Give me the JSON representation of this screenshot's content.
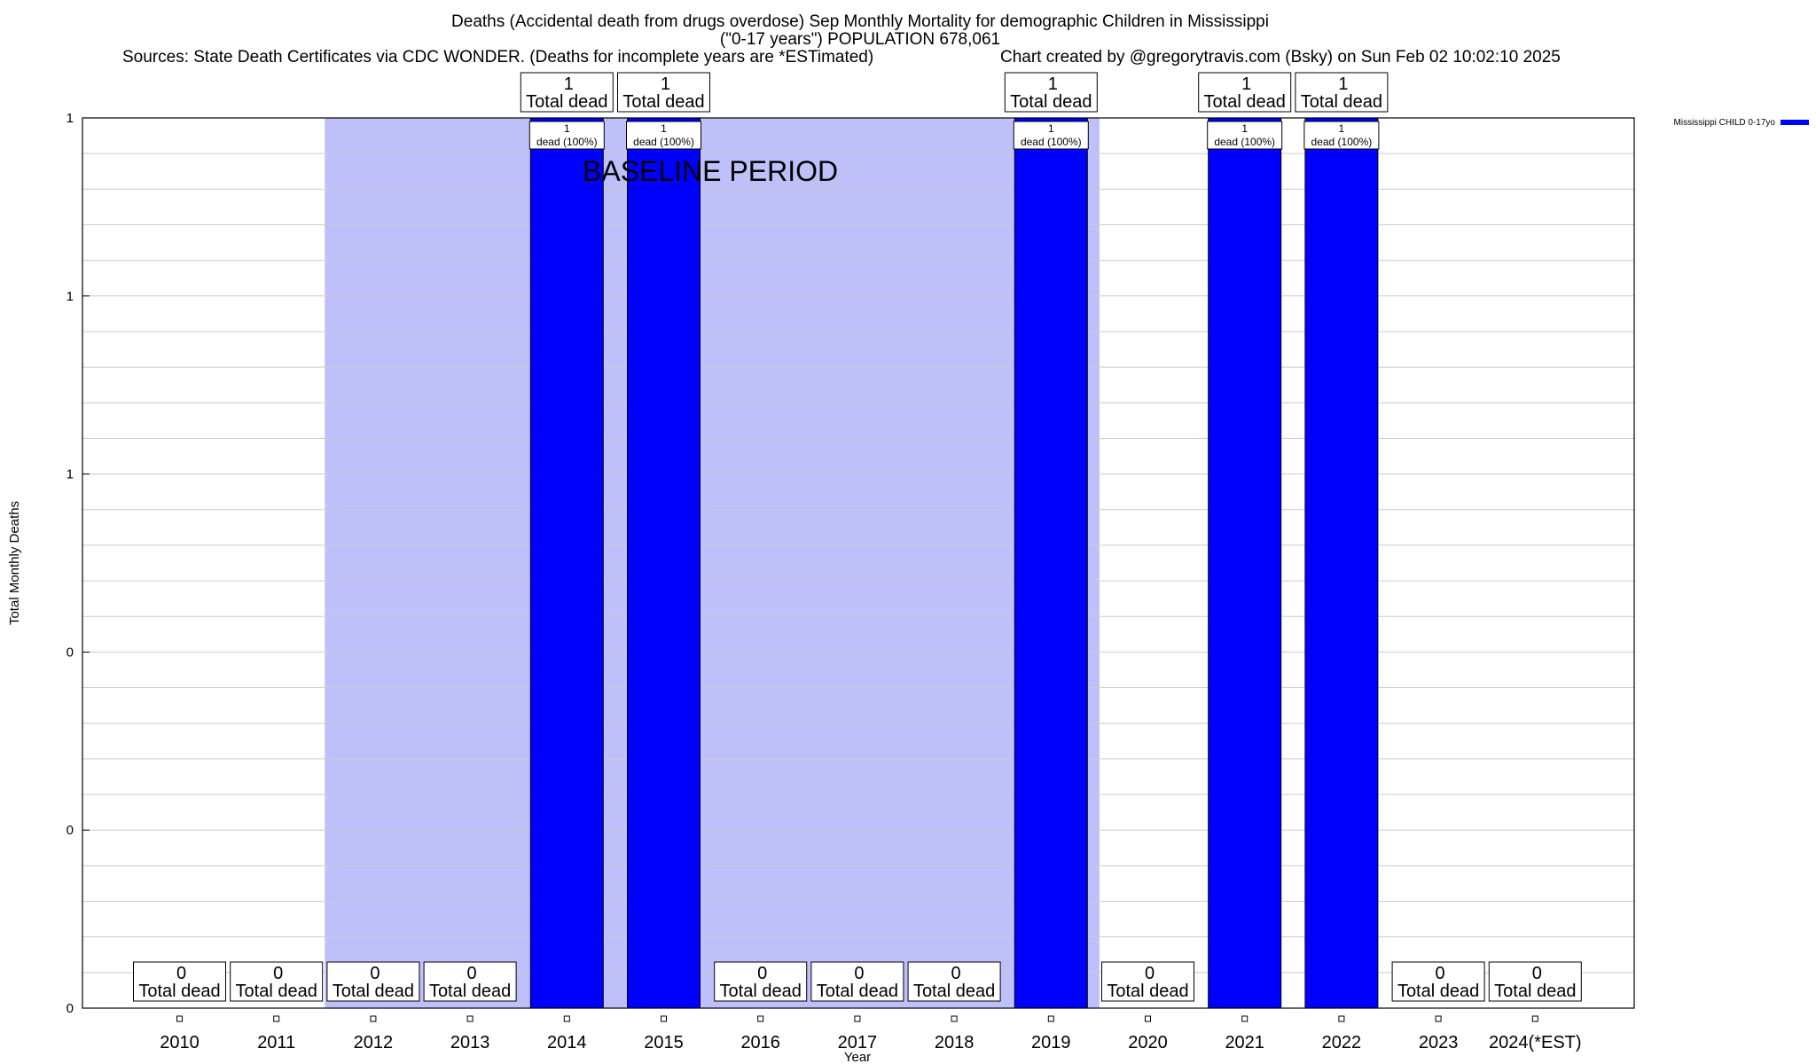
{
  "header": {
    "title": "Deaths (Accidental death from drugs overdose) Sep Monthly Mortality for demographic Children in Mississippi",
    "subtitle": "(\"0-17 years\") POPULATION 678,061",
    "sources": "Sources: State Death Certificates via CDC WONDER. (Deaths for incomplete years are *ESTimated)",
    "credit": "Chart created by @gregorytravis.com (Bsky) on Sun Feb 02 10:02:10 2025"
  },
  "chart_data": {
    "type": "bar",
    "title": "Deaths (Accidental death from drugs overdose) Sep Monthly Mortality for demographic Children in Mississippi",
    "xlabel": "Year",
    "ylabel": "Total Monthly Deaths",
    "categories": [
      "2010",
      "2011",
      "2012",
      "2013",
      "2014",
      "2015",
      "2016",
      "2017",
      "2018",
      "2019",
      "2020",
      "2021",
      "2022",
      "2023",
      "2024(*EST)"
    ],
    "series": [
      {
        "name": "Mississippi CHILD 0-17yo",
        "color": "#0000ff",
        "values": [
          0,
          0,
          0,
          0,
          1,
          1,
          0,
          0,
          0,
          1,
          0,
          1,
          1,
          0,
          0
        ]
      }
    ],
    "total_label": "Total dead",
    "bar_label_suffix": "dead (100%)",
    "ylim": [
      0,
      1
    ],
    "y_tick_labels": [
      "0",
      "0",
      "0",
      "1",
      "1",
      "1"
    ],
    "baseline_period": {
      "label": "BASELINE PERIOD",
      "from": "2012",
      "to": "2019",
      "color": "#bfbffa"
    },
    "grid": true,
    "legend_position": "top-right"
  }
}
